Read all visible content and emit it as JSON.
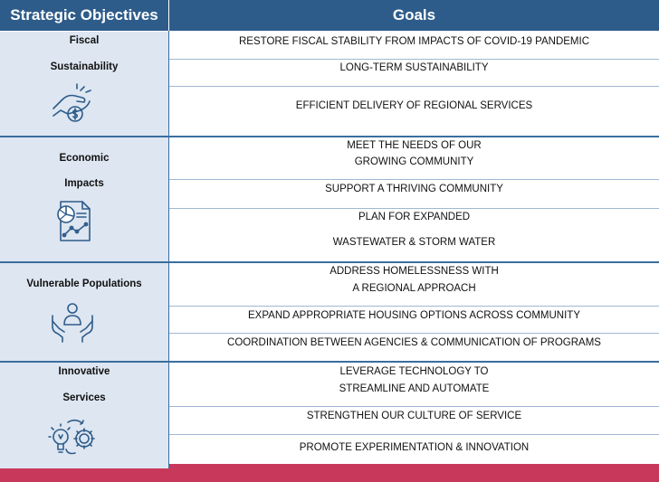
{
  "header": {
    "objectives_title": "Strategic Objectives",
    "goals_title": "Goals"
  },
  "objectives": [
    {
      "line1": "Fiscal",
      "line2": "Sustainability",
      "icon": "hand-coin-icon"
    },
    {
      "line1": "Economic",
      "line2": "Impacts",
      "icon": "report-chart-icon"
    },
    {
      "line1": "Vulnerable Populations",
      "icon": "hands-person-icon"
    },
    {
      "line1": "Innovative",
      "line2": "Services",
      "icon": "lightbulb-gear-icon"
    }
  ],
  "goals": [
    {
      "line1": "RESTORE FISCAL STABILITY FROM IMPACTS OF COVID-19 PANDEMIC"
    },
    {
      "line1": "LONG-TERM SUSTAINABILITY"
    },
    {
      "line1": "EFFICIENT DELIVERY OF REGIONAL SERVICES"
    },
    {
      "line1": "MEET THE NEEDS OF OUR",
      "line2": "GROWING COMMUNITY"
    },
    {
      "line1": "SUPPORT A THRIVING COMMUNITY"
    },
    {
      "line1": "PLAN FOR EXPANDED",
      "line2": "WASTEWATER & STORM WATER"
    },
    {
      "line1": "ADDRESS HOMELESSNESS WITH",
      "line2": "A REGIONAL APPROACH"
    },
    {
      "line1": "EXPAND APPROPRIATE HOUSING OPTIONS ACROSS COMMUNITY"
    },
    {
      "line1": "COORDINATION BETWEEN AGENCIES & COMMUNICATION OF PROGRAMS"
    },
    {
      "line1": "LEVERAGE TECHNOLOGY TO",
      "line2": "STREAMLINE AND AUTOMATE"
    },
    {
      "line1": "STRENGTHEN OUR CULTURE OF SERVICE"
    },
    {
      "line1": "PROMOTE EXPERIMENTATION & INNOVATION"
    }
  ],
  "colors": {
    "header_bg": "#2e5c8a",
    "objective_bg": "#dde6f1",
    "divider": "#3a6e9e",
    "footer": "#c8385a",
    "icon_stroke": "#2e5c8a"
  }
}
